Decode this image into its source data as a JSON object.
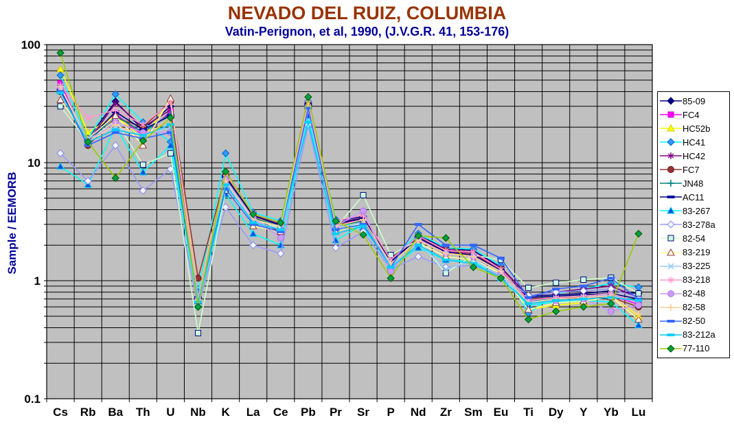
{
  "header": {
    "title": "NEVADO DEL RUIZ, COLUMBIA",
    "subtitle": "Vatin-Perignon, et al, 1990, (J.V.G.R. 41, 153-176)"
  },
  "y_axis": {
    "title": "Sample / EEMORB",
    "scale": "log",
    "range": [
      0.1,
      100
    ],
    "tick_labels": [
      "100",
      "10",
      "1",
      "0.1"
    ],
    "tick_values": [
      100,
      10,
      1,
      0.1
    ]
  },
  "x_axis": {
    "categories": [
      "Cs",
      "Rb",
      "Ba",
      "Th",
      "U",
      "Nb",
      "K",
      "La",
      "Ce",
      "Pb",
      "Pr",
      "Sr",
      "P",
      "Nd",
      "Zr",
      "Sm",
      "Eu",
      "Ti",
      "Dy",
      "Y",
      "Yb",
      "Lu"
    ]
  },
  "style": {
    "plot_bg": "#C0C0C0",
    "grid_color": "#000000",
    "axis_color": "#000000",
    "title_color": "#993300",
    "subtitle_color": "#000099",
    "y_title_color": "#000099"
  },
  "chart_data": {
    "type": "line",
    "title": "NEVADO DEL RUIZ, COLUMBIA",
    "subtitle": "Vatin-Perignon, et al, 1990, (J.V.G.R. 41, 153-176)",
    "ylabel": "Sample / EEMORB",
    "xlabel": "",
    "y_scale": "log",
    "ylim": [
      0.1,
      100
    ],
    "grid": true,
    "legend_position": "right",
    "categories": [
      "Cs",
      "Rb",
      "Ba",
      "Th",
      "U",
      "Nb",
      "K",
      "La",
      "Ce",
      "Pb",
      "Pr",
      "Sr",
      "P",
      "Nd",
      "Zr",
      "Sm",
      "Eu",
      "Ti",
      "Dy",
      "Y",
      "Yb",
      "Lu"
    ],
    "series": [
      {
        "name": "85-09",
        "line": "#000080",
        "marker": "diamond",
        "fill": "#000080",
        "stroke": "#000080",
        "values": [
          42,
          16,
          33,
          19,
          30,
          0.72,
          7.8,
          3.7,
          3.1,
          32,
          3.2,
          3.5,
          1.5,
          2.4,
          1.9,
          1.8,
          1.3,
          0.74,
          0.76,
          0.78,
          0.82,
          0.78
        ]
      },
      {
        "name": "FC4",
        "line": "#FF00FF",
        "marker": "square",
        "fill": "#FF00FF",
        "stroke": "#CC00CC",
        "values": [
          47,
          15,
          26,
          17,
          27,
          0.68,
          7.2,
          3.5,
          2.9,
          31,
          3.0,
          3.3,
          1.45,
          2.3,
          1.75,
          1.7,
          1.2,
          0.66,
          0.7,
          0.72,
          0.75,
          0.63
        ]
      },
      {
        "name": "HC52b",
        "line": "#FFFF00",
        "marker": "triangle",
        "fill": "#FFFF00",
        "stroke": "#CCCC00",
        "values": [
          62,
          18,
          25,
          16,
          34,
          0.75,
          8.0,
          3.4,
          3.0,
          32,
          3.0,
          3.0,
          1.38,
          2.2,
          1.7,
          1.65,
          1.15,
          0.57,
          0.62,
          0.65,
          0.75,
          0.5
        ]
      },
      {
        "name": "HC41",
        "line": "#00FFFF",
        "marker": "diamond",
        "fill": "#3399FF",
        "stroke": "#0066CC",
        "values": [
          55,
          16,
          38,
          22,
          15,
          0.8,
          12,
          3.8,
          3.2,
          33,
          3.3,
          2.7,
          1.5,
          2.5,
          1.9,
          1.85,
          1.35,
          0.53,
          0.78,
          0.85,
          0.95,
          0.88
        ]
      },
      {
        "name": "HC42",
        "line": "#800080",
        "marker": "asterisk",
        "fill": "#800080",
        "stroke": "#800080",
        "values": [
          41,
          15,
          32,
          20,
          28,
          0.7,
          7.6,
          3.6,
          3.0,
          31,
          3.1,
          3.4,
          1.5,
          2.35,
          1.85,
          1.75,
          1.28,
          0.75,
          0.8,
          0.85,
          0.9,
          0.72
        ]
      },
      {
        "name": "FC7",
        "line": "#993333",
        "marker": "circle",
        "fill": "#993333",
        "stroke": "#661111",
        "values": [
          40,
          14,
          24,
          20,
          33,
          1.05,
          7.8,
          3.5,
          2.55,
          31,
          3.0,
          3.2,
          1.55,
          2.3,
          1.8,
          1.7,
          1.25,
          0.7,
          0.72,
          0.73,
          0.72,
          0.6
        ]
      },
      {
        "name": "JN48",
        "line": "#008080",
        "marker": "plus",
        "fill": "#008080",
        "stroke": "#008080",
        "values": [
          40,
          15,
          25,
          18,
          26,
          0.7,
          7.4,
          3.4,
          2.9,
          30,
          2.9,
          3.2,
          1.4,
          2.2,
          1.7,
          1.6,
          1.2,
          0.68,
          0.7,
          0.72,
          0.74,
          0.68
        ]
      },
      {
        "name": "AC11",
        "line": "#000080",
        "marker": "dash",
        "fill": "#0000A0",
        "stroke": "#0000A0",
        "values": [
          41,
          15.5,
          27,
          19,
          25,
          0.72,
          7.6,
          3.55,
          2.95,
          31,
          3.05,
          3.35,
          1.45,
          2.3,
          1.75,
          1.65,
          1.22,
          0.72,
          0.74,
          0.76,
          0.78,
          0.7
        ]
      },
      {
        "name": "83-267",
        "line": "#00FFFF",
        "marker": "triangle",
        "fill": "#0055DD",
        "stroke": "#00CCFF",
        "values": [
          9.3,
          6.5,
          20,
          8.3,
          14,
          0.62,
          5.4,
          2.5,
          2.0,
          25,
          2.2,
          3.0,
          1.3,
          1.9,
          1.5,
          1.45,
          1.05,
          0.62,
          0.66,
          0.68,
          0.66,
          0.42
        ]
      },
      {
        "name": "83-278a",
        "line": "#9999FF",
        "marker": "diamond",
        "fill": "#F0F6FF",
        "stroke": "#8888EE",
        "values": [
          12,
          7.0,
          14,
          5.8,
          8.8,
          0.6,
          4.2,
          2.0,
          1.7,
          21,
          1.9,
          2.6,
          1.25,
          1.6,
          1.3,
          1.35,
          1.1,
          0.75,
          0.8,
          0.82,
          0.85,
          0.72
        ]
      },
      {
        "name": "82-54",
        "line": "#CCFFCC",
        "marker": "square",
        "fill": "#CCFFE0",
        "stroke": "#000080",
        "values": [
          30,
          15,
          23,
          9.6,
          12,
          0.36,
          5.8,
          3.3,
          2.8,
          30,
          2.8,
          5.3,
          1.65,
          2.2,
          1.16,
          1.65,
          1.5,
          0.87,
          0.96,
          1.02,
          1.06,
          0.78
        ]
      },
      {
        "name": "83-219",
        "line": "#FFFF99",
        "marker": "triangle",
        "fill": "#FFFFEE",
        "stroke": "#993333",
        "values": [
          34,
          16,
          25,
          14,
          35,
          0.7,
          7.0,
          2.9,
          2.6,
          30,
          2.6,
          3.1,
          1.35,
          2.1,
          1.6,
          1.5,
          1.15,
          0.57,
          0.65,
          0.67,
          0.73,
          0.47
        ]
      },
      {
        "name": "83-225",
        "line": "#99CCFF",
        "marker": "x",
        "fill": "#99CCFF",
        "stroke": "#99CCFF",
        "values": [
          44,
          16,
          20,
          17,
          20,
          0.65,
          6.8,
          3.2,
          2.7,
          29,
          2.8,
          3.1,
          1.35,
          2.1,
          1.25,
          1.5,
          1.1,
          0.66,
          0.7,
          0.72,
          0.75,
          0.65
        ]
      },
      {
        "name": "83-218",
        "line": "#FF99CC",
        "marker": "asterisk",
        "fill": "#FF99CC",
        "stroke": "#FF99CC",
        "values": [
          45,
          24,
          28,
          21,
          32,
          0.72,
          8.0,
          3.7,
          3.1,
          32,
          3.2,
          3.6,
          1.5,
          2.4,
          1.8,
          1.75,
          1.25,
          0.68,
          0.72,
          0.74,
          0.78,
          0.65
        ]
      },
      {
        "name": "82-48",
        "line": "#CC99FF",
        "marker": "circle",
        "fill": "#CC99FF",
        "stroke": "#AA77DD",
        "values": [
          43,
          15,
          22,
          18,
          18,
          0.7,
          7.2,
          3.4,
          2.3,
          28,
          2.9,
          3.9,
          1.2,
          2.25,
          1.7,
          1.6,
          1.18,
          0.66,
          0.68,
          0.7,
          0.55,
          0.62
        ]
      },
      {
        "name": "82-58",
        "line": "#FFCC99",
        "marker": "plus",
        "fill": "#FFCC99",
        "stroke": "#FFCC99",
        "values": [
          44,
          15,
          21,
          16,
          24,
          0.68,
          7.0,
          3.3,
          2.9,
          30,
          2.9,
          3.3,
          1.4,
          2.2,
          1.7,
          1.6,
          1.2,
          0.65,
          0.7,
          0.72,
          0.74,
          0.52
        ]
      },
      {
        "name": "82-50",
        "line": "#3366FF",
        "marker": "dash",
        "fill": "#3366FF",
        "stroke": "#3366FF",
        "values": [
          40,
          14,
          18,
          16,
          18,
          0.65,
          6.0,
          3.0,
          2.6,
          29,
          2.7,
          3.0,
          1.3,
          3.0,
          2.0,
          2.0,
          1.55,
          0.72,
          0.85,
          0.9,
          1.05,
          0.7
        ]
      },
      {
        "name": "83-212a",
        "line": "#00CCFF",
        "marker": "dash",
        "fill": "#00CCFF",
        "stroke": "#00CCFF",
        "values": [
          39,
          15,
          19,
          17,
          21,
          0.66,
          6.5,
          3.1,
          2.7,
          22,
          2.5,
          2.9,
          1.3,
          2.0,
          1.5,
          1.4,
          1.05,
          0.64,
          0.68,
          0.7,
          0.72,
          0.68
        ]
      },
      {
        "name": "77-110",
        "line": "#99CC00",
        "marker": "diamond",
        "fill": "#00A040",
        "stroke": "#005500",
        "values": [
          85,
          15,
          7.4,
          15.3,
          24,
          0.6,
          8.4,
          3.65,
          3.1,
          36,
          3.2,
          2.45,
          1.05,
          2.4,
          2.3,
          1.3,
          1.05,
          0.47,
          0.55,
          0.6,
          0.64,
          2.5
        ]
      }
    ]
  }
}
